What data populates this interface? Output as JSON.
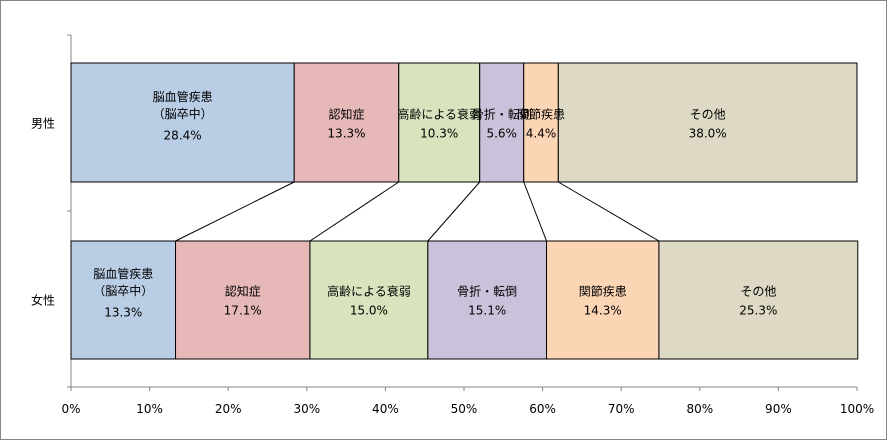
{
  "chart_data": {
    "type": "stacked_bar_horizontal",
    "categories": [
      "男性",
      "女性"
    ],
    "series": [
      {
        "name": "脳血管疾患\n（脳卒中）",
        "color": "#b9cde5",
        "values": [
          28.4,
          13.3
        ],
        "value_labels": [
          "28.4%",
          "13.3%"
        ]
      },
      {
        "name": "認知症",
        "color": "#e6b9b8",
        "values": [
          13.3,
          17.1
        ],
        "value_labels": [
          "13.3%",
          "17.1%"
        ]
      },
      {
        "name": "高齢による衰弱",
        "color": "#d7e4bd",
        "values": [
          10.3,
          15.0
        ],
        "value_labels": [
          "10.3%",
          "15.0%"
        ]
      },
      {
        "name": "骨折・転倒",
        "color": "#ccc1da",
        "values": [
          5.6,
          15.1
        ],
        "value_labels": [
          "5.6%",
          "15.1%"
        ]
      },
      {
        "name": "関節疾患",
        "color": "#fcd5b5",
        "values": [
          4.4,
          14.3
        ],
        "value_labels": [
          "4.4%",
          "14.3%"
        ]
      },
      {
        "name": "その他",
        "color": "#ddd9c4",
        "values": [
          38.0,
          25.3
        ],
        "value_labels": [
          "38.0%",
          "25.3%"
        ]
      }
    ],
    "xlim": [
      0,
      100
    ],
    "xticks": [
      {
        "value": 0,
        "label": "0%"
      },
      {
        "value": 10,
        "label": "10%"
      },
      {
        "value": 20,
        "label": "20%"
      },
      {
        "value": 30,
        "label": "30%"
      },
      {
        "value": 40,
        "label": "40%"
      },
      {
        "value": 50,
        "label": "50%"
      },
      {
        "value": 60,
        "label": "60%"
      },
      {
        "value": 70,
        "label": "70%"
      },
      {
        "value": 80,
        "label": "80%"
      },
      {
        "value": 90,
        "label": "90%"
      },
      {
        "value": 100,
        "label": "100%"
      }
    ]
  }
}
